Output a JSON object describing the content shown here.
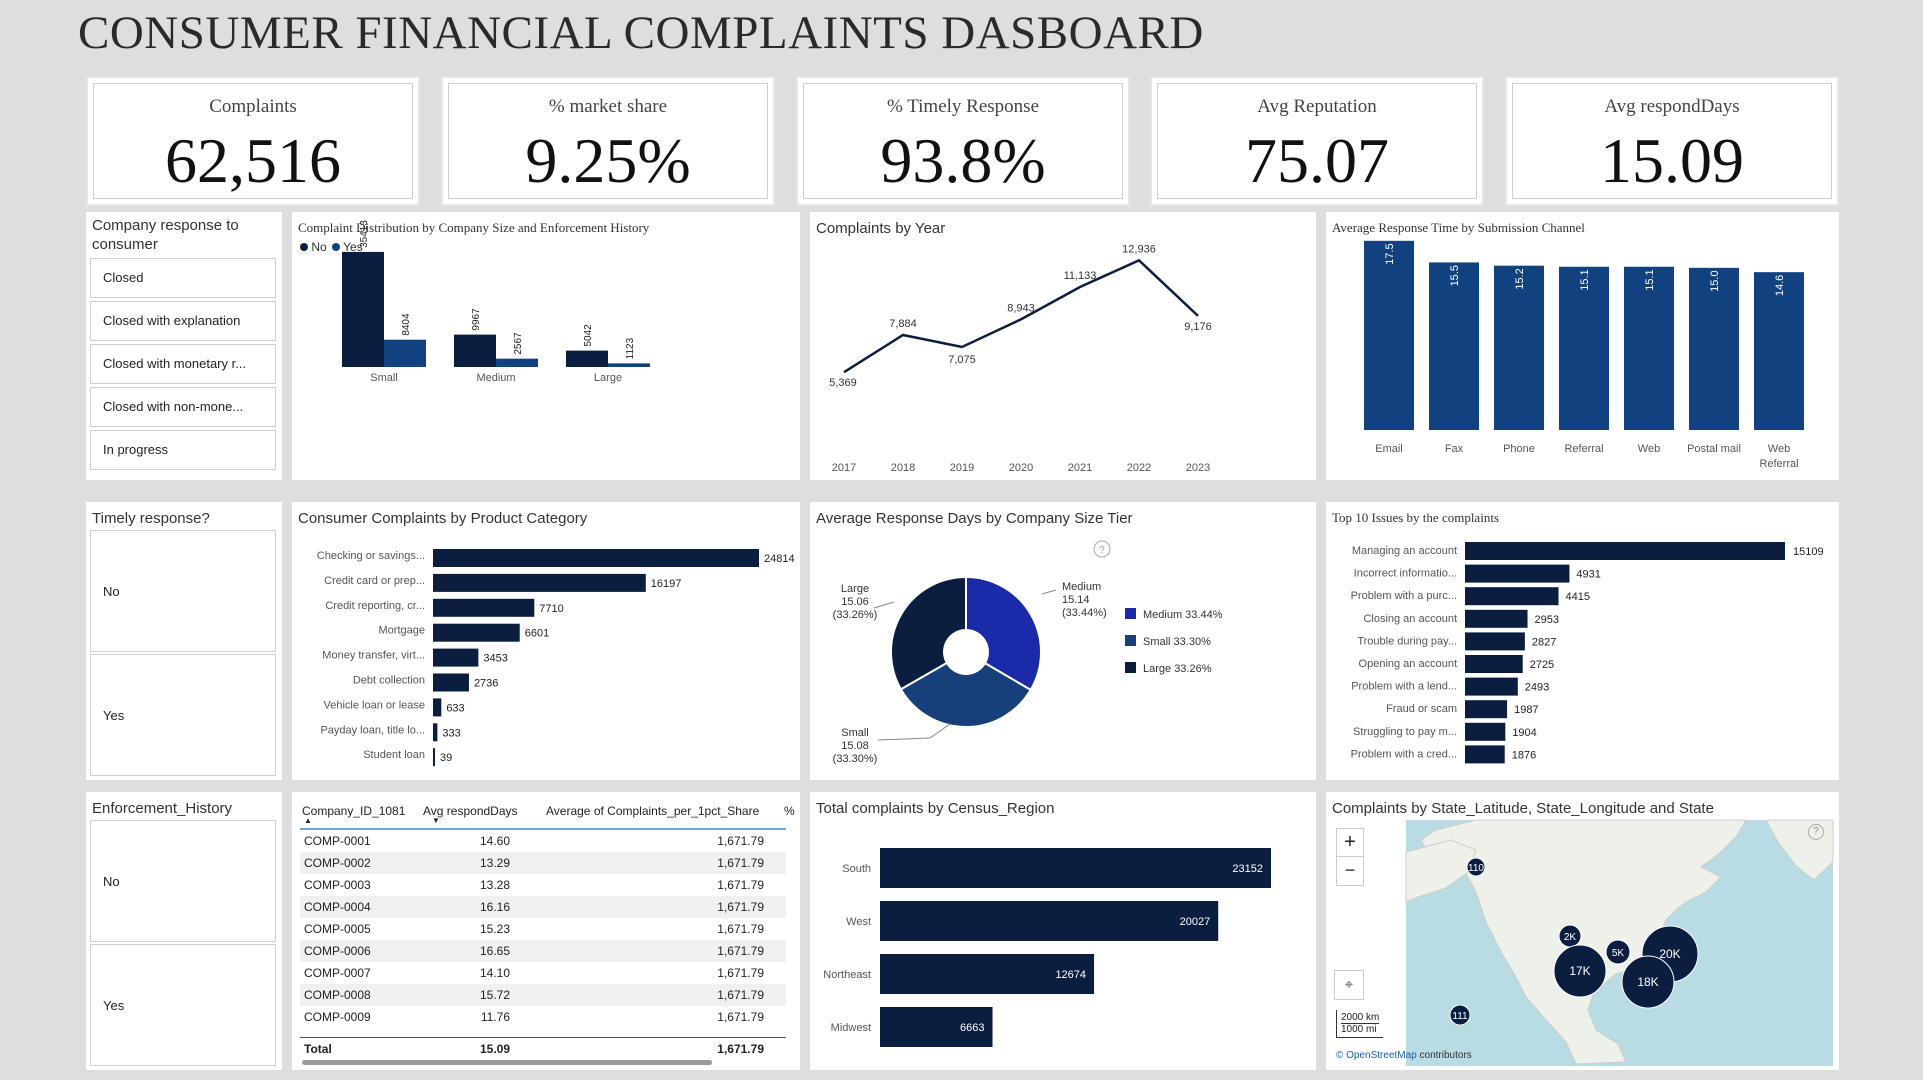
{
  "title": "CONSUMER FINANCIAL COMPLAINTS DASBOARD",
  "kpis": [
    {
      "label": "Complaints",
      "value": "62,516"
    },
    {
      "label": "% market share",
      "value": "9.25%"
    },
    {
      "label": "% Timely Response",
      "value": "93.8%"
    },
    {
      "label": "Avg Reputation",
      "value": "75.07"
    },
    {
      "label": "Avg respondDays",
      "value": "15.09"
    }
  ],
  "slicers": {
    "company_response": {
      "title": "Company response to consumer",
      "items": [
        "Closed",
        "Closed with explanation",
        "Closed with monetary r...",
        "Closed with non-mone...",
        "In progress"
      ]
    },
    "timely": {
      "title": "Timely response?",
      "items": [
        "No",
        "Yes"
      ]
    },
    "enforcement": {
      "title": "Enforcement_History",
      "items": [
        "No",
        "Yes"
      ]
    }
  },
  "colors": {
    "navy": "#0b1e3f",
    "blue": "#11427f",
    "royal": "#1a2aa8",
    "mid": "#173f7a"
  },
  "chart_data": [
    {
      "id": "dist",
      "type": "bar",
      "title": "Complaint Distribution by Company Size and Enforcement History",
      "categories": [
        "Small",
        "Medium",
        "Large"
      ],
      "series": [
        {
          "name": "No",
          "values": [
            35413,
            9967,
            5042
          ]
        },
        {
          "name": "Yes",
          "values": [
            8404,
            2567,
            1123
          ]
        }
      ],
      "value_labels": {
        "No": [
          "35413",
          "9967",
          "5042"
        ],
        "Yes": [
          "8404",
          "2567",
          "1123"
        ]
      },
      "ylim": [
        0,
        40000
      ]
    },
    {
      "id": "year",
      "type": "line",
      "title": "Complaints by Year",
      "x": [
        "2017",
        "2018",
        "2019",
        "2020",
        "2021",
        "2022",
        "2023"
      ],
      "values": [
        5369,
        7884,
        7075,
        8943,
        11133,
        12936,
        9176
      ],
      "labels": [
        "5,369",
        "7,884",
        "7,075",
        "8,943",
        "11,133",
        "12,936",
        "9,176"
      ],
      "ylim": [
        4500,
        13500
      ]
    },
    {
      "id": "channel",
      "type": "bar",
      "title": "Average Response Time by Submission Channel",
      "categories": [
        "Email",
        "Fax",
        "Phone",
        "Referral",
        "Web",
        "Postal mail",
        "Web Referral"
      ],
      "values": [
        17.5,
        15.5,
        15.2,
        15.1,
        15.1,
        15.0,
        14.6
      ],
      "labels": [
        "17.5",
        "15.5",
        "15.2",
        "15.1",
        "15.1",
        "15.0",
        "14.6"
      ],
      "ylim": [
        0,
        18.5
      ]
    },
    {
      "id": "product",
      "type": "bar",
      "title": "Consumer Complaints by Product Category",
      "categories": [
        "Checking or savings...",
        "Credit card or prep...",
        "Credit reporting, cr...",
        "Mortgage",
        "Money transfer, virt...",
        "Debt collection",
        "Vehicle loan or lease",
        "Payday loan, title lo...",
        "Student loan"
      ],
      "values": [
        24814,
        16197,
        7710,
        6601,
        3453,
        2736,
        633,
        333,
        39
      ],
      "xlim": [
        0,
        24814
      ]
    },
    {
      "id": "donut",
      "type": "pie",
      "title": "Average Response Days by Company Size Tier",
      "slices": [
        {
          "name": "Medium",
          "value": 15.14,
          "share": "(33.44%)",
          "legend": "Medium 33.44%"
        },
        {
          "name": "Small",
          "value": 15.08,
          "share": "(33.30%)",
          "legend": "Small 33.30%"
        },
        {
          "name": "Large",
          "value": 15.06,
          "share": "(33.26%)",
          "legend": "Large 33.26%"
        }
      ]
    },
    {
      "id": "issues",
      "type": "bar",
      "title": "Top 10 Issues by the complaints",
      "categories": [
        "Managing an account",
        "Incorrect informatio...",
        "Problem with a purc...",
        "Closing an account",
        "Trouble during pay...",
        "Opening an account",
        "Problem with a lend...",
        "Fraud or scam",
        "Struggling to pay m...",
        "Problem with a cred..."
      ],
      "values": [
        15109,
        4931,
        4415,
        2953,
        2827,
        2725,
        2493,
        1987,
        1904,
        1876
      ],
      "xlim": [
        0,
        15109
      ]
    },
    {
      "id": "region",
      "type": "bar",
      "title": "Total complaints by Census_Region",
      "categories": [
        "South",
        "West",
        "Northeast",
        "Midwest"
      ],
      "values": [
        23152,
        20027,
        12674,
        6663
      ],
      "xlim": [
        0,
        23152
      ]
    }
  ],
  "table": {
    "headers": [
      "Company_ID_1081",
      "Avg respondDays",
      "Average of Complaints_per_1pct_Share",
      "%"
    ],
    "rows": [
      [
        "COMP-0001",
        "14.60",
        "1,671.79"
      ],
      [
        "COMP-0002",
        "13.29",
        "1,671.79"
      ],
      [
        "COMP-0003",
        "13.28",
        "1,671.79"
      ],
      [
        "COMP-0004",
        "16.16",
        "1,671.79"
      ],
      [
        "COMP-0005",
        "15.23",
        "1,671.79"
      ],
      [
        "COMP-0006",
        "16.65",
        "1,671.79"
      ],
      [
        "COMP-0007",
        "14.10",
        "1,671.79"
      ],
      [
        "COMP-0008",
        "15.72",
        "1,671.79"
      ],
      [
        "COMP-0009",
        "11.76",
        "1,671.79"
      ]
    ],
    "total": [
      "Total",
      "15.09",
      "1,671.79"
    ]
  },
  "map": {
    "title": "Complaints by State_Latitude, State_Longitude and State",
    "bubbles": [
      {
        "label": "110"
      },
      {
        "label": "2K"
      },
      {
        "label": "17K"
      },
      {
        "label": "5K"
      },
      {
        "label": "20K"
      },
      {
        "label": "18K"
      },
      {
        "label": "111"
      }
    ],
    "zoom_in": "+",
    "zoom_out": "−",
    "scale_km": "2000 km",
    "scale_mi": "1000 mi",
    "attribution_link": "© OpenStreetMap",
    "attribution_rest": " contributors"
  }
}
